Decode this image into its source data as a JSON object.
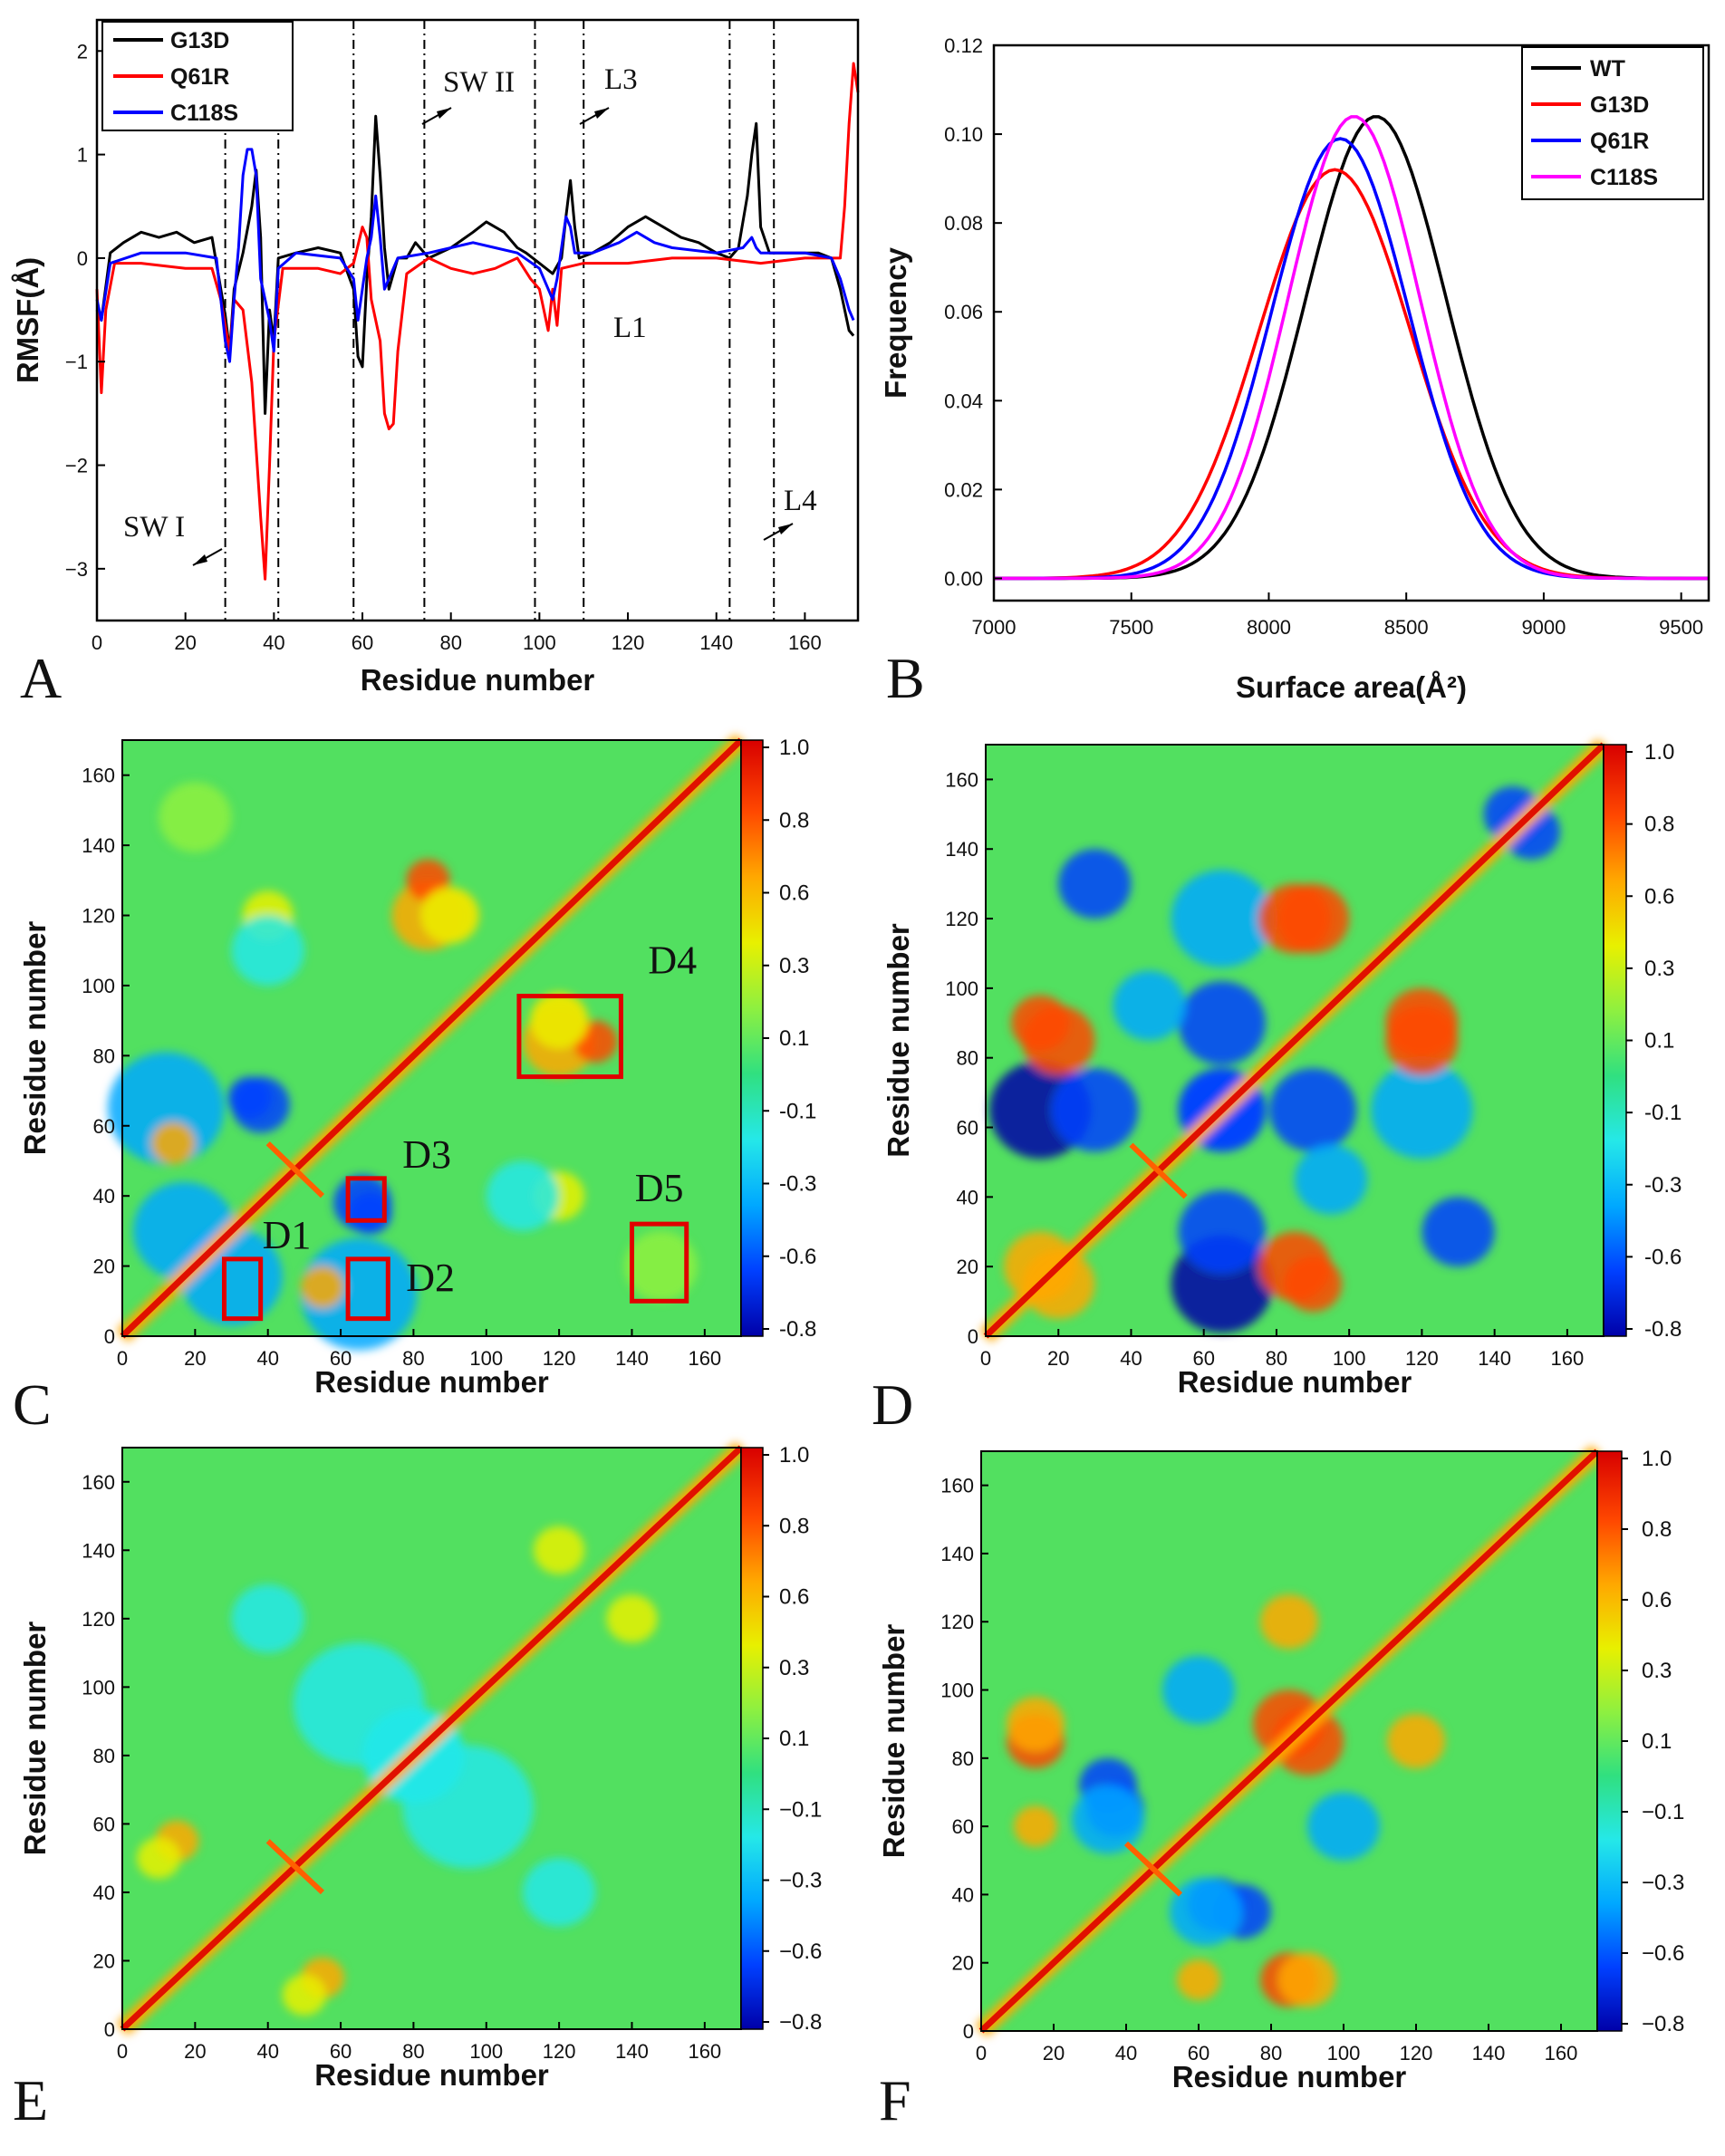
{
  "chart_data": [
    {
      "panel": "A",
      "type": "line",
      "xlabel": "Residue number",
      "ylabel": "RMSF(Å)",
      "xlim": [
        0,
        172
      ],
      "ylim": [
        -3.5,
        2.3
      ],
      "xticks": [
        0,
        20,
        40,
        60,
        80,
        100,
        120,
        140,
        160
      ],
      "yticks": [
        2,
        1,
        0,
        -1,
        -2,
        -3
      ],
      "ytick_labels": [
        "2",
        "1",
        "0",
        "−1",
        "−2",
        "−3"
      ],
      "legend_position": "top-left",
      "series": [
        {
          "name": "G13D",
          "color": "#000000",
          "points": [
            [
              0,
              -0.5
            ],
            [
              1,
              -0.6
            ],
            [
              3,
              0.05
            ],
            [
              6,
              0.15
            ],
            [
              10,
              0.25
            ],
            [
              14,
              0.2
            ],
            [
              18,
              0.25
            ],
            [
              22,
              0.15
            ],
            [
              26,
              0.2
            ],
            [
              29,
              -0.55
            ],
            [
              30,
              -0.9
            ],
            [
              31,
              -0.3
            ],
            [
              33,
              0.05
            ],
            [
              35,
              0.5
            ],
            [
              36,
              0.85
            ],
            [
              37,
              0.2
            ],
            [
              38,
              -1.5
            ],
            [
              39,
              -0.5
            ],
            [
              40,
              -0.8
            ],
            [
              41,
              0.0
            ],
            [
              45,
              0.05
            ],
            [
              50,
              0.1
            ],
            [
              55,
              0.05
            ],
            [
              58,
              -0.3
            ],
            [
              59,
              -0.95
            ],
            [
              60,
              -1.05
            ],
            [
              61,
              -0.2
            ],
            [
              62,
              0.4
            ],
            [
              63,
              1.37
            ],
            [
              64,
              0.8
            ],
            [
              65,
              0.1
            ],
            [
              66,
              -0.3
            ],
            [
              68,
              0.0
            ],
            [
              70,
              0.0
            ],
            [
              72,
              0.15
            ],
            [
              75,
              0.0
            ],
            [
              80,
              0.1
            ],
            [
              85,
              0.25
            ],
            [
              88,
              0.35
            ],
            [
              92,
              0.25
            ],
            [
              95,
              0.1
            ],
            [
              97,
              0.05
            ],
            [
              100,
              -0.05
            ],
            [
              103,
              -0.15
            ],
            [
              105,
              0.0
            ],
            [
              106,
              0.4
            ],
            [
              107,
              0.75
            ],
            [
              108,
              0.3
            ],
            [
              109,
              0.0
            ],
            [
              112,
              0.05
            ],
            [
              116,
              0.15
            ],
            [
              120,
              0.3
            ],
            [
              124,
              0.4
            ],
            [
              128,
              0.3
            ],
            [
              132,
              0.2
            ],
            [
              136,
              0.15
            ],
            [
              140,
              0.05
            ],
            [
              143,
              0.0
            ],
            [
              145,
              0.1
            ],
            [
              147,
              0.6
            ],
            [
              148,
              1.0
            ],
            [
              149,
              1.3
            ],
            [
              150,
              0.3
            ],
            [
              152,
              0.05
            ],
            [
              158,
              0.05
            ],
            [
              163,
              0.05
            ],
            [
              166,
              0.0
            ],
            [
              168,
              -0.3
            ],
            [
              170,
              -0.7
            ],
            [
              171,
              -0.75
            ]
          ]
        },
        {
          "name": "Q61R",
          "color": "#ff0000",
          "points": [
            [
              0,
              -0.3
            ],
            [
              1,
              -1.3
            ],
            [
              2,
              -0.5
            ],
            [
              4,
              -0.05
            ],
            [
              10,
              -0.05
            ],
            [
              20,
              -0.1
            ],
            [
              26,
              -0.1
            ],
            [
              28,
              -0.4
            ],
            [
              30,
              -0.9
            ],
            [
              31,
              -0.4
            ],
            [
              33,
              -0.5
            ],
            [
              35,
              -1.2
            ],
            [
              37,
              -2.5
            ],
            [
              38,
              -3.1
            ],
            [
              39,
              -2.0
            ],
            [
              40,
              -0.8
            ],
            [
              42,
              -0.1
            ],
            [
              50,
              -0.1
            ],
            [
              55,
              -0.15
            ],
            [
              58,
              -0.05
            ],
            [
              60,
              0.3
            ],
            [
              61,
              0.2
            ],
            [
              62,
              -0.4
            ],
            [
              64,
              -0.8
            ],
            [
              65,
              -1.5
            ],
            [
              66,
              -1.65
            ],
            [
              67,
              -1.6
            ],
            [
              68,
              -0.9
            ],
            [
              70,
              -0.15
            ],
            [
              75,
              0.0
            ],
            [
              80,
              -0.1
            ],
            [
              85,
              -0.15
            ],
            [
              90,
              -0.1
            ],
            [
              95,
              0.0
            ],
            [
              98,
              -0.2
            ],
            [
              100,
              -0.3
            ],
            [
              102,
              -0.7
            ],
            [
              103,
              -0.3
            ],
            [
              104,
              -0.65
            ],
            [
              105,
              -0.1
            ],
            [
              110,
              -0.05
            ],
            [
              120,
              -0.05
            ],
            [
              130,
              0.0
            ],
            [
              140,
              0.0
            ],
            [
              150,
              -0.05
            ],
            [
              160,
              0.0
            ],
            [
              168,
              0.0
            ],
            [
              169,
              0.5
            ],
            [
              170,
              1.3
            ],
            [
              171,
              1.88
            ],
            [
              172,
              1.6
            ]
          ]
        },
        {
          "name": "C118S",
          "color": "#0000ff",
          "points": [
            [
              0,
              -0.4
            ],
            [
              1,
              -0.6
            ],
            [
              3,
              -0.05
            ],
            [
              10,
              0.05
            ],
            [
              20,
              0.05
            ],
            [
              27,
              0.0
            ],
            [
              29,
              -0.8
            ],
            [
              30,
              -1.0
            ],
            [
              31,
              -0.4
            ],
            [
              32,
              0.1
            ],
            [
              33,
              0.8
            ],
            [
              34,
              1.05
            ],
            [
              35,
              1.05
            ],
            [
              36,
              0.8
            ],
            [
              37,
              -0.2
            ],
            [
              38,
              -0.4
            ],
            [
              39,
              -0.6
            ],
            [
              40,
              -0.9
            ],
            [
              41,
              -0.1
            ],
            [
              45,
              0.05
            ],
            [
              55,
              0.0
            ],
            [
              58,
              -0.2
            ],
            [
              59,
              -0.6
            ],
            [
              60,
              -0.3
            ],
            [
              61,
              0.0
            ],
            [
              62,
              0.2
            ],
            [
              63,
              0.6
            ],
            [
              64,
              0.2
            ],
            [
              65,
              -0.3
            ],
            [
              68,
              0.0
            ],
            [
              75,
              0.05
            ],
            [
              80,
              0.1
            ],
            [
              85,
              0.15
            ],
            [
              90,
              0.1
            ],
            [
              95,
              0.05
            ],
            [
              100,
              -0.1
            ],
            [
              103,
              -0.4
            ],
            [
              104,
              -0.2
            ],
            [
              106,
              0.4
            ],
            [
              107,
              0.3
            ],
            [
              108,
              0.05
            ],
            [
              112,
              0.05
            ],
            [
              118,
              0.15
            ],
            [
              122,
              0.25
            ],
            [
              126,
              0.15
            ],
            [
              130,
              0.1
            ],
            [
              140,
              0.05
            ],
            [
              146,
              0.1
            ],
            [
              148,
              0.2
            ],
            [
              149,
              0.1
            ],
            [
              150,
              0.05
            ],
            [
              160,
              0.05
            ],
            [
              166,
              0.0
            ],
            [
              168,
              -0.2
            ],
            [
              170,
              -0.5
            ],
            [
              171,
              -0.6
            ]
          ]
        }
      ],
      "vlines": [
        29,
        41,
        58,
        74,
        99,
        110,
        143,
        153
      ],
      "annotations": [
        "SW I",
        "SW II",
        "L3",
        "L1",
        "L4"
      ]
    },
    {
      "panel": "B",
      "type": "line",
      "xlabel": "Surface area(Å²)",
      "ylabel": "Frequency",
      "xlim": [
        7000,
        9600
      ],
      "ylim": [
        -0.005,
        0.12
      ],
      "xticks": [
        7000,
        7500,
        8000,
        8500,
        9000,
        9500
      ],
      "yticks": [
        0.0,
        0.02,
        0.04,
        0.06,
        0.08,
        0.1,
        0.12
      ],
      "ytick_labels": [
        "0.00",
        "0.02",
        "0.04",
        "0.06",
        "0.08",
        "0.10",
        "0.12"
      ],
      "legend_position": "top-right",
      "series": [
        {
          "name": "WT",
          "color": "#000000",
          "mean": 8390,
          "sd": 255,
          "peak": 0.104
        },
        {
          "name": "G13D",
          "color": "#ff0000",
          "mean": 8240,
          "sd": 275,
          "peak": 0.092
        },
        {
          "name": "Q61R",
          "color": "#0000ff",
          "mean": 8260,
          "sd": 250,
          "peak": 0.099
        },
        {
          "name": "C118S",
          "color": "#ff00ff",
          "mean": 8310,
          "sd": 240,
          "peak": 0.104
        }
      ]
    },
    {
      "panel": "C",
      "type": "heatmap",
      "xlabel": "Residue number",
      "ylabel": "Residue number",
      "range": [
        0,
        170
      ],
      "ticks": [
        0,
        20,
        40,
        60,
        80,
        100,
        120,
        140,
        160
      ],
      "colorbar_ticks": [
        "1.0",
        "0.8",
        "0.6",
        "0.3",
        "0.1",
        "-0.1",
        "-0.3",
        "-0.6",
        "-0.8"
      ],
      "boxes": [
        {
          "label": "D1",
          "x": [
            28,
            38
          ],
          "y": [
            5,
            22
          ]
        },
        {
          "label": "D2",
          "x": [
            62,
            73
          ],
          "y": [
            5,
            22
          ]
        },
        {
          "label": "D3",
          "x": [
            62,
            72
          ],
          "y": [
            33,
            45
          ]
        },
        {
          "label": "D4",
          "x": [
            109,
            137
          ],
          "y": [
            74,
            97
          ]
        },
        {
          "label": "D5",
          "x": [
            140,
            155
          ],
          "y": [
            10,
            32
          ]
        }
      ]
    },
    {
      "panel": "D",
      "type": "heatmap",
      "xlabel": "Residue number",
      "ylabel": "Residue number",
      "range": [
        0,
        170
      ],
      "ticks": [
        0,
        20,
        40,
        60,
        80,
        100,
        120,
        140,
        160
      ],
      "colorbar_ticks": [
        "1.0",
        "0.8",
        "0.6",
        "0.3",
        "0.1",
        "-0.1",
        "-0.3",
        "-0.6",
        "-0.8"
      ]
    },
    {
      "panel": "E",
      "type": "heatmap",
      "xlabel": "Residue number",
      "ylabel": "Residue number",
      "range": [
        0,
        170
      ],
      "ticks": [
        0,
        20,
        40,
        60,
        80,
        100,
        120,
        140,
        160
      ],
      "colorbar_ticks": [
        "1.0",
        "0.8",
        "0.6",
        "0.3",
        "0.1",
        "−0.1",
        "−0.3",
        "−0.6",
        "−0.8"
      ]
    },
    {
      "panel": "F",
      "type": "heatmap",
      "xlabel": "Residue number",
      "ylabel": "Residue number",
      "range": [
        0,
        170
      ],
      "ticks": [
        0,
        20,
        40,
        60,
        80,
        100,
        120,
        140,
        160
      ],
      "colorbar_ticks": [
        "1.0",
        "0.8",
        "0.6",
        "0.3",
        "0.1",
        "−0.1",
        "−0.3",
        "−0.6",
        "−0.8"
      ]
    }
  ],
  "panel_letters": [
    "A",
    "B",
    "C",
    "D",
    "E",
    "F"
  ],
  "colormap": [
    "#0000a8",
    "#0040ff",
    "#00a8ff",
    "#25e8e8",
    "#30e080",
    "#8ef040",
    "#e8f000",
    "#ffa800",
    "#ff4800",
    "#d80000"
  ]
}
